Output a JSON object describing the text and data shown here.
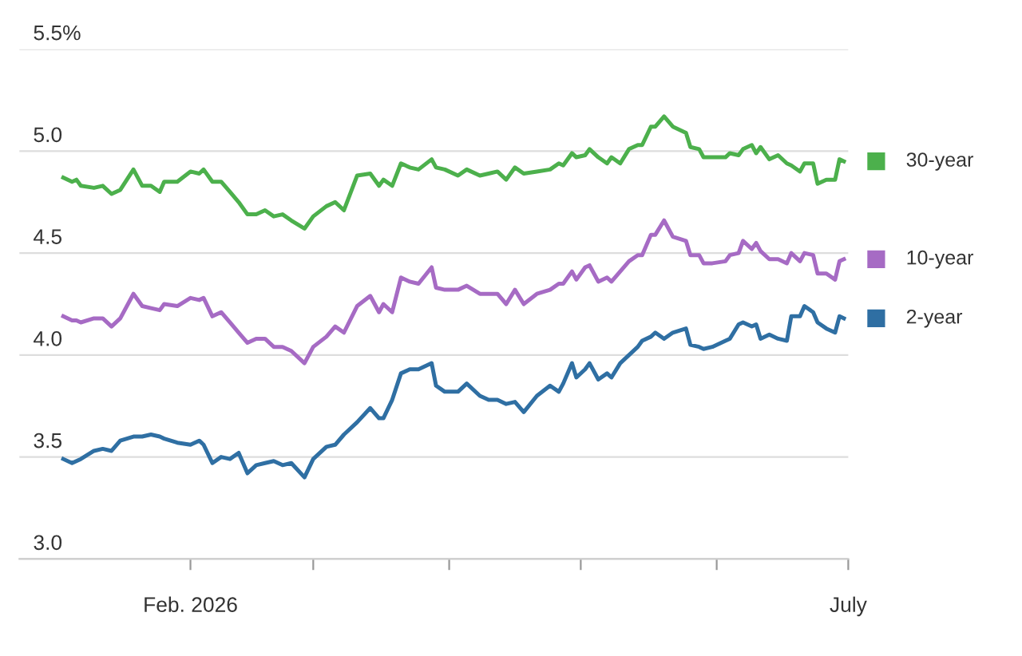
{
  "chart_data": {
    "type": "line",
    "x": [
      "2026-01-03",
      "2026-01-05",
      "2026-01-06",
      "2026-01-07",
      "2026-01-10",
      "2026-01-12",
      "2026-01-14",
      "2026-01-16",
      "2026-01-19",
      "2026-01-21",
      "2026-01-23",
      "2026-01-25",
      "2026-01-26",
      "2026-01-29",
      "2026-02-01",
      "2026-02-03",
      "2026-02-04",
      "2026-02-06",
      "2026-02-08",
      "2026-02-10",
      "2026-02-12",
      "2026-02-14",
      "2026-02-16",
      "2026-02-18",
      "2026-02-20",
      "2026-02-22",
      "2026-02-24",
      "2026-02-27",
      "2026-03-01",
      "2026-03-04",
      "2026-03-06",
      "2026-03-08",
      "2026-03-11",
      "2026-03-14",
      "2026-03-16",
      "2026-03-17",
      "2026-03-19",
      "2026-03-21",
      "2026-03-23",
      "2026-03-25",
      "2026-03-28",
      "2026-03-29",
      "2026-03-31",
      "2026-04-03",
      "2026-04-05",
      "2026-04-08",
      "2026-04-10",
      "2026-04-12",
      "2026-04-14",
      "2026-04-16",
      "2026-04-18",
      "2026-04-21",
      "2026-04-24",
      "2026-04-26",
      "2026-04-27",
      "2026-04-29",
      "2026-04-30",
      "2026-05-02",
      "2026-05-03",
      "2026-05-05",
      "2026-05-07",
      "2026-05-08",
      "2026-05-10",
      "2026-05-12",
      "2026-05-14",
      "2026-05-15",
      "2026-05-17",
      "2026-05-18",
      "2026-05-20",
      "2026-05-22",
      "2026-05-25",
      "2026-05-26",
      "2026-05-28",
      "2026-05-29",
      "2026-05-31",
      "2026-06-03",
      "2026-06-04",
      "2026-06-06",
      "2026-06-07",
      "2026-06-09",
      "2026-06-10",
      "2026-06-11",
      "2026-06-13",
      "2026-06-15",
      "2026-06-17",
      "2026-06-18",
      "2026-06-20",
      "2026-06-21",
      "2026-06-23",
      "2026-06-24",
      "2026-06-26",
      "2026-06-28",
      "2026-06-29",
      "2026-06-30"
    ],
    "series": [
      {
        "name": "30-year",
        "color": "#4cb04c",
        "values": [
          4.87,
          4.85,
          4.86,
          4.83,
          4.82,
          4.83,
          4.79,
          4.81,
          4.91,
          4.83,
          4.83,
          4.8,
          4.85,
          4.85,
          4.9,
          4.89,
          4.91,
          4.85,
          4.85,
          4.8,
          4.75,
          4.69,
          4.69,
          4.71,
          4.68,
          4.69,
          4.66,
          4.62,
          4.68,
          4.73,
          4.75,
          4.71,
          4.88,
          4.89,
          4.83,
          4.86,
          4.83,
          4.94,
          4.92,
          4.91,
          4.96,
          4.92,
          4.91,
          4.88,
          4.91,
          4.88,
          4.89,
          4.9,
          4.86,
          4.92,
          4.89,
          4.9,
          4.91,
          4.94,
          4.93,
          4.99,
          4.97,
          4.98,
          5.01,
          4.97,
          4.94,
          4.97,
          4.94,
          5.01,
          5.03,
          5.03,
          5.12,
          5.12,
          5.17,
          5.12,
          5.09,
          5.02,
          5.01,
          4.97,
          4.97,
          4.97,
          4.99,
          4.98,
          5.01,
          5.03,
          4.99,
          5.02,
          4.96,
          4.98,
          4.94,
          4.93,
          4.9,
          4.94,
          4.94,
          4.84,
          4.86,
          4.86,
          4.96,
          4.95
        ]
      },
      {
        "name": "10-year",
        "color": "#a66bc4",
        "values": [
          4.19,
          4.17,
          4.17,
          4.16,
          4.18,
          4.18,
          4.14,
          4.18,
          4.3,
          4.24,
          4.23,
          4.22,
          4.25,
          4.24,
          4.28,
          4.27,
          4.28,
          4.19,
          4.21,
          4.16,
          4.11,
          4.06,
          4.08,
          4.08,
          4.04,
          4.04,
          4.02,
          3.96,
          4.04,
          4.09,
          4.14,
          4.11,
          4.24,
          4.29,
          4.21,
          4.25,
          4.21,
          4.38,
          4.36,
          4.35,
          4.43,
          4.33,
          4.32,
          4.32,
          4.34,
          4.3,
          4.3,
          4.3,
          4.25,
          4.32,
          4.25,
          4.3,
          4.32,
          4.35,
          4.35,
          4.41,
          4.37,
          4.43,
          4.44,
          4.36,
          4.38,
          4.36,
          4.41,
          4.46,
          4.49,
          4.49,
          4.59,
          4.59,
          4.66,
          4.58,
          4.56,
          4.49,
          4.49,
          4.45,
          4.45,
          4.46,
          4.49,
          4.5,
          4.56,
          4.52,
          4.55,
          4.51,
          4.47,
          4.47,
          4.45,
          4.5,
          4.46,
          4.5,
          4.49,
          4.4,
          4.4,
          4.37,
          4.46,
          4.47
        ]
      },
      {
        "name": "2-year",
        "color": "#2f6fa3",
        "values": [
          3.49,
          3.47,
          3.48,
          3.49,
          3.53,
          3.54,
          3.53,
          3.58,
          3.6,
          3.6,
          3.61,
          3.6,
          3.59,
          3.57,
          3.56,
          3.58,
          3.56,
          3.47,
          3.5,
          3.49,
          3.52,
          3.42,
          3.46,
          3.47,
          3.48,
          3.46,
          3.47,
          3.4,
          3.49,
          3.55,
          3.56,
          3.61,
          3.67,
          3.74,
          3.69,
          3.69,
          3.78,
          3.91,
          3.93,
          3.93,
          3.96,
          3.85,
          3.82,
          3.82,
          3.86,
          3.8,
          3.78,
          3.78,
          3.76,
          3.77,
          3.72,
          3.8,
          3.85,
          3.82,
          3.86,
          3.96,
          3.89,
          3.93,
          3.96,
          3.88,
          3.91,
          3.89,
          3.96,
          4.0,
          4.04,
          4.07,
          4.09,
          4.11,
          4.08,
          4.11,
          4.13,
          4.05,
          4.04,
          4.03,
          4.04,
          4.07,
          4.08,
          4.15,
          4.16,
          4.14,
          4.15,
          4.08,
          4.1,
          4.08,
          4.07,
          4.19,
          4.19,
          4.24,
          4.21,
          4.16,
          4.13,
          4.11,
          4.19,
          4.18
        ]
      }
    ],
    "xlim": [
      "2025-12-24",
      "2026-07-01"
    ],
    "xticks": [
      {
        "value": "2026-02-01",
        "label": "Feb. 2026"
      },
      {
        "value": "2026-03-01",
        "label": null
      },
      {
        "value": "2026-04-01",
        "label": null
      },
      {
        "value": "2026-05-01",
        "label": null
      },
      {
        "value": "2026-06-01",
        "label": null
      },
      {
        "value": "2026-07-01",
        "label": "July"
      }
    ],
    "ylim": [
      3.0,
      5.5
    ],
    "yticks": [
      {
        "value": 3.0,
        "label": "3.0"
      },
      3.5,
      {
        "value": 4.0,
        "label": "4.0"
      },
      4.5,
      {
        "value": 5.0,
        "label": "5.0"
      },
      {
        "value": 5.5,
        "label": "5.5%"
      }
    ],
    "grid": "y",
    "legend": "right",
    "marker": "none",
    "line_style": "solid"
  }
}
